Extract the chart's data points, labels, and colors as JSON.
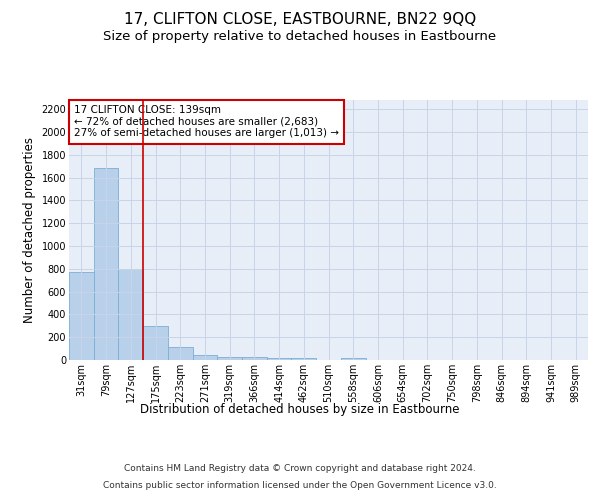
{
  "title": "17, CLIFTON CLOSE, EASTBOURNE, BN22 9QQ",
  "subtitle": "Size of property relative to detached houses in Eastbourne",
  "xlabel": "Distribution of detached houses by size in Eastbourne",
  "ylabel": "Number of detached properties",
  "categories": [
    "31sqm",
    "79sqm",
    "127sqm",
    "175sqm",
    "223sqm",
    "271sqm",
    "319sqm",
    "366sqm",
    "414sqm",
    "462sqm",
    "510sqm",
    "558sqm",
    "606sqm",
    "654sqm",
    "702sqm",
    "750sqm",
    "798sqm",
    "846sqm",
    "894sqm",
    "941sqm",
    "989sqm"
  ],
  "values": [
    770,
    1680,
    800,
    300,
    110,
    40,
    28,
    22,
    20,
    18,
    0,
    20,
    0,
    0,
    0,
    0,
    0,
    0,
    0,
    0,
    0
  ],
  "bar_color": "#b8d0ea",
  "bar_edge_color": "#7aafd4",
  "grid_color": "#c8d4e8",
  "background_color": "#e8eef8",
  "annotation_box_color": "#ffffff",
  "annotation_box_edge": "#cc0000",
  "vline_color": "#cc0000",
  "vline_x": 2.5,
  "ann_line1": "17 CLIFTON CLOSE: 139sqm",
  "ann_line2": "← 72% of detached houses are smaller (2,683)",
  "ann_line3": "27% of semi-detached houses are larger (1,013) →",
  "ylim": [
    0,
    2280
  ],
  "yticks": [
    0,
    200,
    400,
    600,
    800,
    1000,
    1200,
    1400,
    1600,
    1800,
    2000,
    2200
  ],
  "footer_line1": "Contains HM Land Registry data © Crown copyright and database right 2024.",
  "footer_line2": "Contains public sector information licensed under the Open Government Licence v3.0.",
  "title_fontsize": 11,
  "subtitle_fontsize": 9.5,
  "axis_label_fontsize": 8.5,
  "tick_fontsize": 7,
  "annotation_fontsize": 7.5,
  "footer_fontsize": 6.5
}
